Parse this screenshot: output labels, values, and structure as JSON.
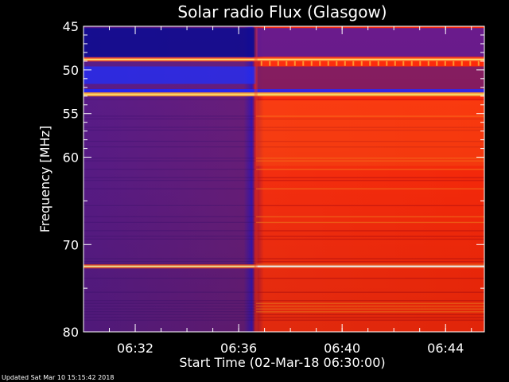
{
  "footer_text": "Updated Sat Mar 10 15:15:42 2018",
  "chart_data": {
    "type": "heatmap",
    "title": "Solar radio Flux (Glasgow)",
    "xlabel": "Start Time (02-Mar-18 06:30:00)",
    "ylabel": "Frequency [MHz]",
    "xlim": [
      "06:30:00",
      "06:45:30"
    ],
    "ylim": [
      45,
      80
    ],
    "y_reversed": true,
    "x_ticks": [
      "06:32",
      "06:36",
      "06:40",
      "06:44"
    ],
    "y_ticks": [
      45,
      50,
      55,
      60,
      70,
      80
    ],
    "y_minor_ticks": [
      46,
      47,
      48,
      49,
      51,
      52,
      53,
      54,
      56,
      57,
      58,
      59,
      65,
      75
    ],
    "colormap": [
      "#1a0a6a",
      "#3a14ff",
      "#7a2a8a",
      "#c4102a",
      "#ff2a00",
      "#ff8a1a",
      "#ffe070",
      "#ffffff"
    ],
    "burst_onset_time": "06:36:40",
    "background_level_before": 0.15,
    "background_level_after": 0.62,
    "constant_emission_lines_mhz": [
      48.8,
      52.8,
      72.5
    ],
    "grid": false
  }
}
